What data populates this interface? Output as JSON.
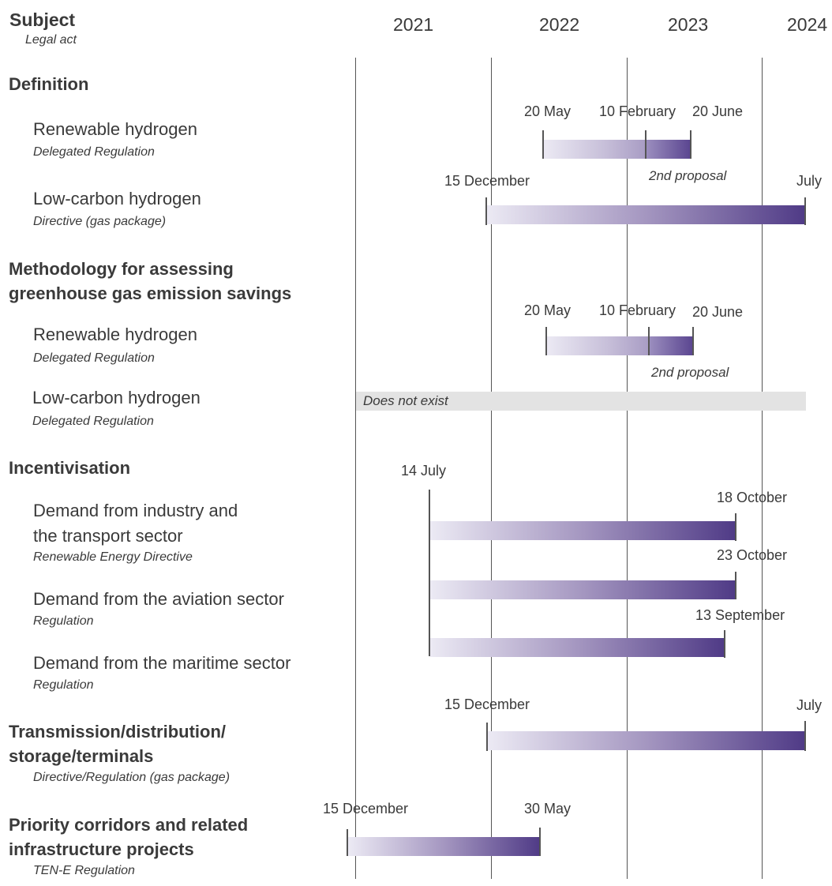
{
  "header": {
    "subject": "Subject",
    "legal_act": "Legal act",
    "years": [
      "2021",
      "2022",
      "2023",
      "2024"
    ]
  },
  "sections": {
    "definition": "Definition",
    "methodology_l1": "Methodology for assessing",
    "methodology_l2": "greenhouse gas emission savings",
    "incentivisation": "Incentivisation",
    "transmission_l1": "Transmission/distribution/",
    "transmission_l2": "storage/terminals",
    "transmission_sub": "Directive/Regulation (gas package)",
    "priority_l1": "Priority corridors and related",
    "priority_l2": "infrastructure projects",
    "priority_sub": "TEN-E Regulation"
  },
  "rows": {
    "def_renewable": {
      "title": "Renewable hydrogen",
      "sub": "Delegated Regulation"
    },
    "def_lowcarbon": {
      "title": "Low-carbon hydrogen",
      "sub": "Directive (gas package)"
    },
    "meth_renewable": {
      "title": "Renewable hydrogen",
      "sub": "Delegated Regulation"
    },
    "meth_lowcarbon": {
      "title": "Low-carbon hydrogen",
      "sub": "Delegated Regulation"
    },
    "inc_industry": {
      "title_l1": "Demand from industry and",
      "title_l2": "the transport sector",
      "sub": "Renewable Energy Directive"
    },
    "inc_aviation": {
      "title": "Demand from the aviation sector",
      "sub": "Regulation"
    },
    "inc_maritime": {
      "title": "Demand from the maritime sector",
      "sub": "Regulation"
    }
  },
  "labels": {
    "d1_start": "20 May",
    "d1_mid": "10 February",
    "d1_end": "20 June",
    "d1_note": "2nd proposal",
    "d2_start": "15 December",
    "d2_end": "July",
    "m1_start": "20 May",
    "m1_mid": "10 February",
    "m1_end": "20 June",
    "m1_note": "2nd proposal",
    "m2_note": "Does not exist",
    "i_start": "14 July",
    "i1_end": "18 October",
    "i2_end": "23 October",
    "i3_end": "13 September",
    "t_start": "15 December",
    "t_end": "July",
    "p_start": "15 December",
    "p_end": "30 May"
  },
  "colors": {
    "bar_light": "#eceaf4",
    "bar_dark": "#4f3a86",
    "not_exist": "#e3e3e3",
    "text": "#3a3a3a"
  }
}
